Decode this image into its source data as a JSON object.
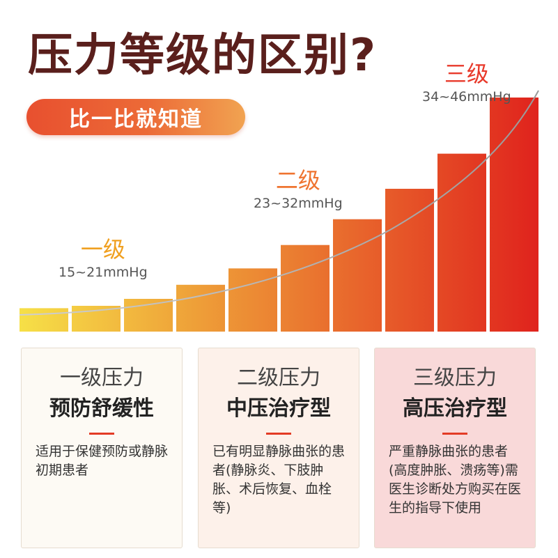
{
  "title": "压力等级的区别?",
  "pill_label": "比一比就知道",
  "levels": [
    {
      "name": "一级",
      "range": "15~21mmHg",
      "color": "#f0a020"
    },
    {
      "name": "二级",
      "range": "23~32mmHg",
      "color": "#ef7430"
    },
    {
      "name": "三级",
      "range": "34~46mmHg",
      "color": "#e8392a"
    }
  ],
  "cards": [
    {
      "title": "一级压力",
      "subtitle": "预防舒缓性",
      "description": "适用于保健预防或静脉初期患者",
      "background": "#fdfaf4"
    },
    {
      "title": "二级压力",
      "subtitle": "中压治疗型",
      "description": "已有明显静脉曲张的患者(静脉炎、下肢肿胀、术后恢复、血栓等)",
      "background": "#fdf1ea"
    },
    {
      "title": "三级压力",
      "subtitle": "高压治疗型",
      "description": "严重静脉曲张的患者(高度肿胀、溃疡等)需医生诊断处方购买在医生的指导下使用",
      "background": "#f9d9d9"
    }
  ],
  "chart_data": {
    "type": "bar",
    "description": "gradient step bars rising along a curve",
    "values": [
      0.1,
      0.11,
      0.14,
      0.2,
      0.27,
      0.37,
      0.48,
      0.61,
      0.76,
      1.0
    ],
    "colors_start": "#f6e047",
    "colors_end": "#e0231d"
  },
  "accent": "#e33b25"
}
